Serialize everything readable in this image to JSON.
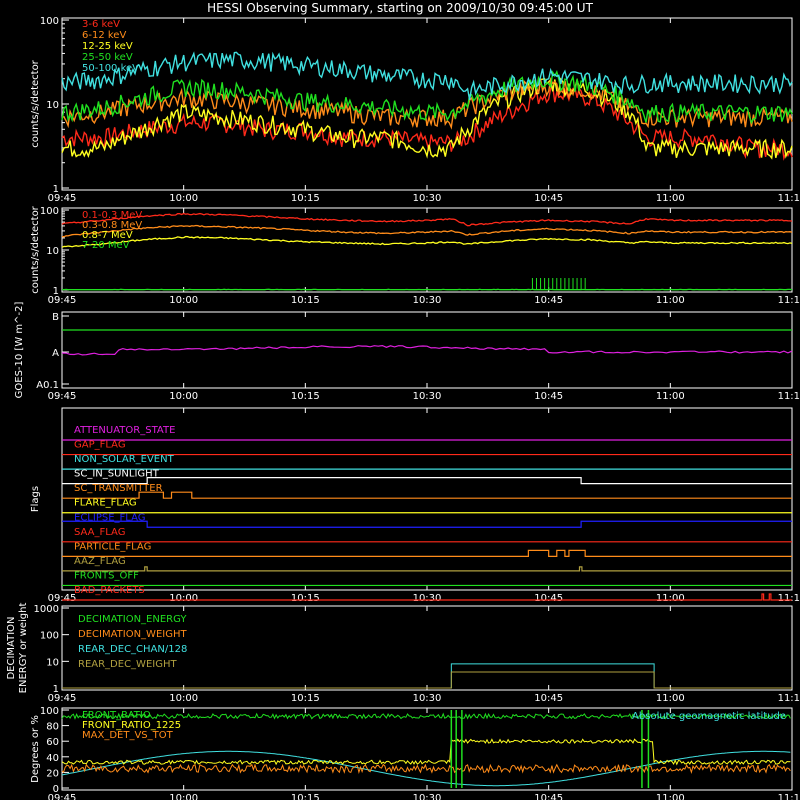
{
  "title": "HESSI Observing Summary, starting on 2009/10/30 09:45:00 UT",
  "time_ticks": [
    "09:45",
    "10:00",
    "10:15",
    "10:30",
    "10:45",
    "11:00",
    "11:15"
  ],
  "colors": {
    "red": "#ff2a1a",
    "orange": "#ff8c1a",
    "yellow": "#ffff20",
    "green": "#20e020",
    "cyan": "#40e0e0",
    "magenta": "#e020e0",
    "blue": "#2020ff",
    "olive": "#b0a040",
    "white": "#ffffff"
  },
  "chart_data": [
    {
      "type": "line",
      "panel": "lightcurves_low",
      "ylabel": "counts/s/detector",
      "y_scale": "log",
      "ylim": [
        1,
        100
      ],
      "y_ticks": [
        "1",
        "10",
        "100"
      ],
      "series": [
        {
          "name": "3-6 keV",
          "color": "red"
        },
        {
          "name": "6-12 keV",
          "color": "orange"
        },
        {
          "name": "12-25 keV",
          "color": "yellow"
        },
        {
          "name": "25-50 keV",
          "color": "green"
        },
        {
          "name": "50-100 keV",
          "color": "cyan"
        }
      ],
      "x_minutes": [
        0,
        5,
        10,
        15,
        20,
        25,
        30,
        35,
        40,
        45,
        48,
        50,
        55,
        60,
        65,
        70,
        72,
        75,
        80,
        85
      ],
      "values": {
        "3-6 keV": [
          4,
          4,
          5,
          6,
          6,
          5,
          5,
          4,
          4,
          3.5,
          3.5,
          4,
          8,
          14,
          12,
          6,
          4,
          4,
          4,
          3
        ],
        "6-12 keV": [
          7,
          8,
          10,
          12,
          11,
          10,
          9,
          8,
          7,
          7,
          7,
          9,
          14,
          17,
          15,
          9,
          7,
          7,
          7,
          7
        ],
        "12-25 keV": [
          3,
          3,
          5,
          8,
          7,
          6,
          5,
          4,
          4,
          3,
          3,
          5,
          12,
          18,
          15,
          8,
          3,
          3,
          3,
          3
        ],
        "25-50 keV": [
          8,
          9,
          12,
          16,
          15,
          13,
          11,
          10,
          9,
          8,
          8,
          10,
          16,
          20,
          17,
          11,
          8,
          8,
          8,
          8
        ],
        "50-100 keV": [
          18,
          20,
          26,
          32,
          34,
          33,
          29,
          26,
          22,
          20,
          20,
          14,
          18,
          22,
          20,
          17,
          18,
          18,
          18,
          18
        ]
      }
    },
    {
      "type": "line",
      "panel": "lightcurves_high",
      "ylabel": "counts/s/detector",
      "y_scale": "log",
      "ylim": [
        1,
        100
      ],
      "y_ticks": [
        "1",
        "10",
        "100"
      ],
      "series": [
        {
          "name": "0.1-0.3 MeV",
          "color": "red"
        },
        {
          "name": "0.3-0.8 MeV",
          "color": "orange"
        },
        {
          "name": "0.8-7 MeV",
          "color": "yellow"
        },
        {
          "name": "7-20 MeV",
          "color": "green"
        }
      ],
      "x_minutes": [
        0,
        5,
        10,
        15,
        20,
        25,
        30,
        35,
        40,
        45,
        48,
        50,
        55,
        60,
        65,
        70,
        72,
        75,
        80,
        85
      ],
      "values": {
        "0.1-0.3 MeV": [
          45,
          55,
          70,
          80,
          76,
          68,
          60,
          55,
          52,
          55,
          60,
          42,
          50,
          55,
          52,
          45,
          60,
          55,
          55,
          55
        ],
        "0.3-0.8 MeV": [
          22,
          28,
          35,
          40,
          38,
          35,
          31,
          28,
          26,
          28,
          30,
          24,
          30,
          34,
          31,
          26,
          30,
          28,
          28,
          28
        ],
        "0.8-7 MeV": [
          12,
          14,
          18,
          21,
          20,
          18,
          16,
          15,
          14,
          15,
          16,
          14,
          17,
          19,
          18,
          15,
          16,
          15,
          15,
          15
        ],
        "7-20 MeV": [
          1,
          1,
          1,
          1,
          1,
          1,
          1,
          1,
          1,
          1,
          1,
          1,
          1,
          1,
          1,
          1,
          1,
          1,
          1,
          1
        ]
      }
    },
    {
      "type": "line",
      "panel": "goes",
      "ylabel": "GOES-10 [W m^-2]",
      "y_scale": "log",
      "y_ticks": [
        "B",
        "A",
        "A0.1"
      ],
      "series": [
        {
          "name": "GOES long",
          "color": "green"
        },
        {
          "name": "GOES short",
          "color": "magenta"
        }
      ]
    },
    {
      "type": "table",
      "panel": "flags",
      "ylabel": "Flags",
      "flags": [
        {
          "name": "ATTENUATOR_STATE",
          "color": "magenta"
        },
        {
          "name": "GAP_FLAG",
          "color": "red"
        },
        {
          "name": "NON_SOLAR_EVENT",
          "color": "cyan"
        },
        {
          "name": "SC_IN_SUNLIGHT",
          "color": "white"
        },
        {
          "name": "SC_TRANSMITTER",
          "color": "orange"
        },
        {
          "name": "FLARE_FLAG",
          "color": "yellow"
        },
        {
          "name": "ECLIPSE_FLAG",
          "color": "blue"
        },
        {
          "name": "SAA_FLAG",
          "color": "red"
        },
        {
          "name": "PARTICLE_FLAG",
          "color": "orange"
        },
        {
          "name": "AAZ_FLAG",
          "color": "olive"
        },
        {
          "name": "FRONTS_OFF",
          "color": "green"
        },
        {
          "name": "BAD_PACKETS",
          "color": "red"
        }
      ]
    },
    {
      "type": "line",
      "panel": "decimation",
      "ylabel": "DECIMATION ENERGY or weight",
      "y_ticks": [
        "1",
        "10",
        "100",
        "1000"
      ],
      "series": [
        {
          "name": "DECIMATION_ENERGY",
          "color": "green"
        },
        {
          "name": "DECIMATION_WEIGHT",
          "color": "orange"
        },
        {
          "name": "REAR_DEC_CHAN/128",
          "color": "cyan"
        },
        {
          "name": "REAR_DEC_WEIGHT",
          "color": "olive"
        }
      ]
    },
    {
      "type": "line",
      "panel": "ratios",
      "ylabel": "Degrees or %",
      "ylim": [
        0,
        100
      ],
      "y_ticks": [
        "0",
        "20",
        "40",
        "60",
        "80",
        "100"
      ],
      "series": [
        {
          "name": "FRONT_RATIO",
          "color": "green"
        },
        {
          "name": "FRONT_RATIO_1225",
          "color": "yellow"
        },
        {
          "name": "MAX_DET_VS_TOT",
          "color": "orange"
        },
        {
          "name": "Absolute geomagnetic latitude",
          "color": "cyan"
        }
      ]
    }
  ]
}
